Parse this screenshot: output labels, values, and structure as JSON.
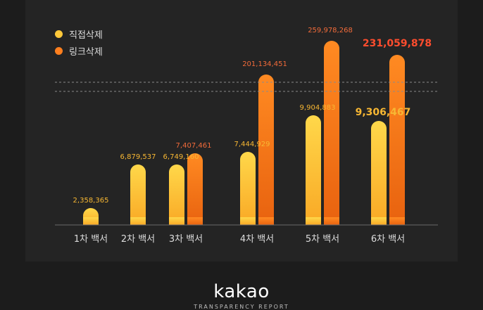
{
  "chart_data": {
    "type": "bar",
    "title": "",
    "xlabel": "",
    "ylabel": "",
    "categories": [
      "1차 백서",
      "2차 백서",
      "3차 백서",
      "4차 백서",
      "5차 백서",
      "6차 백서"
    ],
    "series": [
      {
        "name": "직접삭제",
        "color": "#ffc83a",
        "values": [
          2358365,
          null,
          6749160,
          7444929,
          9904883,
          9306467
        ],
        "labels": [
          "2,358,365",
          "6,879,537",
          "6,749,160",
          "7,444,929",
          "9,904,883",
          "9,306,467"
        ]
      },
      {
        "name": "링크삭제",
        "color": "#ff7f1e",
        "values": [
          null,
          null,
          7407461,
          201134451,
          259978268,
          231059878
        ],
        "labels": [
          "",
          "",
          "7,407,461",
          "201,134,451",
          "259,978,268",
          "231,059,878"
        ]
      }
    ],
    "axis_break": true,
    "legend_position": "top-left"
  },
  "colors": {
    "direct_label": "#f7b733",
    "link_label": "#f26b3a",
    "highlight_link_label": "#ff4d2e",
    "axis": "#6a6a6a",
    "break_line": "#8a8a8a"
  },
  "logo": {
    "name": "kakao",
    "sub": "TRANSPARENCY REPORT"
  }
}
